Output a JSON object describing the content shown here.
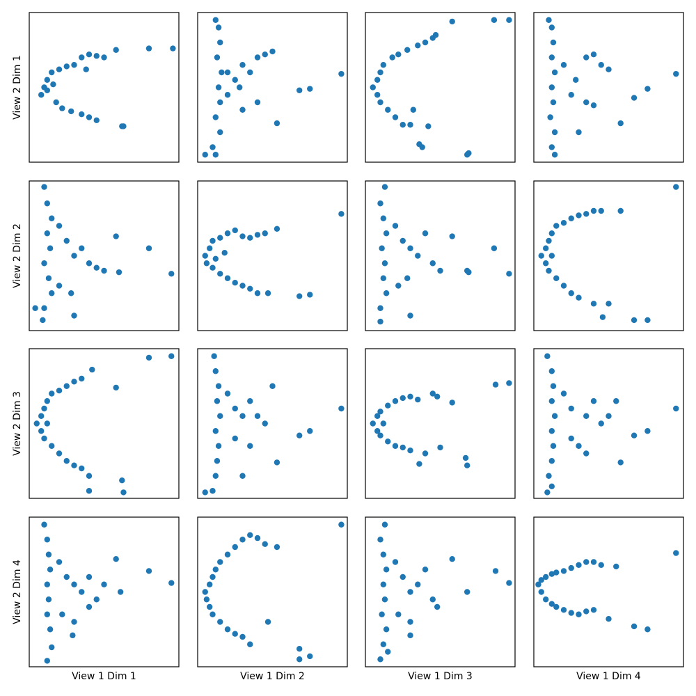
{
  "chart_data": [
    {
      "type": "scatter",
      "ylabel": "View 2 Dim 1",
      "color": "#1f77b4",
      "xlim": [
        0,
        100
      ],
      "ylim": [
        0,
        100
      ],
      "x": [
        10,
        8,
        12,
        15,
        20,
        25,
        30,
        18,
        22,
        28,
        35,
        40,
        45,
        38,
        35,
        40,
        45,
        50,
        58,
        80,
        96,
        62,
        63,
        12,
        16
      ],
      "y": [
        50,
        45,
        55,
        60,
        62,
        64,
        65,
        40,
        36,
        34,
        32,
        30,
        28,
        62,
        70,
        72,
        71,
        70,
        75,
        76,
        76,
        24,
        24,
        48,
        52
      ]
    },
    {
      "type": "scatter",
      "color": "#1f77b4",
      "xlim": [
        0,
        100
      ],
      "ylim": [
        0,
        100
      ],
      "x": [
        12,
        14,
        15,
        13,
        16,
        14,
        15,
        12,
        15,
        10,
        12,
        5,
        20,
        25,
        30,
        35,
        40,
        45,
        50,
        20,
        30,
        40,
        96,
        68,
        75,
        53,
        28
      ],
      "y": [
        95,
        90,
        80,
        70,
        60,
        50,
        40,
        30,
        20,
        10,
        5,
        5,
        60,
        55,
        65,
        60,
        70,
        72,
        74,
        45,
        35,
        40,
        59,
        48,
        49,
        26,
        50
      ]
    },
    {
      "type": "scatter",
      "color": "#1f77b4",
      "xlim": [
        0,
        100
      ],
      "ylim": [
        0,
        100
      ],
      "x": [
        5,
        8,
        10,
        8,
        10,
        15,
        20,
        25,
        30,
        12,
        18,
        22,
        28,
        35,
        40,
        45,
        47,
        58,
        86,
        96,
        68,
        69,
        38,
        36,
        42,
        32
      ],
      "y": [
        50,
        55,
        60,
        45,
        40,
        35,
        30,
        25,
        25,
        65,
        70,
        72,
        75,
        78,
        80,
        83,
        85,
        94,
        95,
        95,
        5,
        6,
        10,
        12,
        24,
        35
      ]
    },
    {
      "type": "scatter",
      "color": "#1f77b4",
      "xlim": [
        0,
        100
      ],
      "ylim": [
        0,
        100
      ],
      "x": [
        10,
        12,
        13,
        12,
        14,
        12,
        13,
        11,
        14,
        12,
        14,
        20,
        28,
        35,
        40,
        45,
        50,
        25,
        35,
        40,
        95,
        67,
        76,
        58,
        30
      ],
      "y": [
        95,
        90,
        80,
        70,
        60,
        50,
        40,
        30,
        20,
        10,
        5,
        65,
        55,
        70,
        72,
        65,
        62,
        45,
        40,
        38,
        59,
        43,
        49,
        26,
        20
      ]
    },
    {
      "type": "scatter",
      "ylabel": "View 2 Dim 2",
      "color": "#1f77b4",
      "xlim": [
        0,
        100
      ],
      "ylim": [
        0,
        100
      ],
      "x": [
        10,
        12,
        15,
        12,
        14,
        10,
        13,
        15,
        10,
        9,
        4,
        20,
        25,
        30,
        35,
        40,
        45,
        50,
        20,
        28,
        95,
        80,
        58,
        60,
        30
      ],
      "y": [
        96,
        85,
        75,
        65,
        55,
        45,
        35,
        25,
        15,
        7,
        15,
        70,
        60,
        50,
        55,
        45,
        42,
        40,
        30,
        25,
        38,
        55,
        63,
        39,
        10
      ]
    },
    {
      "type": "scatter",
      "color": "#1f77b4",
      "xlim": [
        0,
        100
      ],
      "ylim": [
        0,
        100
      ],
      "x": [
        5,
        8,
        10,
        6,
        10,
        15,
        20,
        25,
        30,
        35,
        40,
        47,
        15,
        20,
        25,
        30,
        35,
        40,
        45,
        53,
        96,
        75,
        68,
        12,
        18
      ],
      "y": [
        50,
        55,
        60,
        45,
        42,
        38,
        35,
        32,
        30,
        28,
        25,
        25,
        62,
        65,
        67,
        63,
        62,
        64,
        65,
        68,
        78,
        24,
        23,
        48,
        52
      ]
    },
    {
      "type": "scatter",
      "color": "#1f77b4",
      "xlim": [
        0,
        100
      ],
      "ylim": [
        0,
        100
      ],
      "x": [
        13,
        10,
        12,
        14,
        11,
        13,
        12,
        14,
        10,
        10,
        30,
        20,
        25,
        30,
        35,
        40,
        45,
        50,
        22,
        28,
        96,
        86,
        58,
        68,
        69
      ],
      "y": [
        96,
        85,
        75,
        65,
        55,
        45,
        35,
        25,
        15,
        6,
        10,
        70,
        60,
        55,
        50,
        65,
        45,
        40,
        30,
        35,
        38,
        55,
        63,
        40,
        39
      ]
    },
    {
      "type": "scatter",
      "color": "#1f77b4",
      "xlim": [
        0,
        100
      ],
      "ylim": [
        0,
        100
      ],
      "x": [
        5,
        8,
        10,
        12,
        15,
        20,
        25,
        30,
        35,
        40,
        45,
        8,
        10,
        15,
        20,
        25,
        30,
        40,
        50,
        46,
        58,
        95,
        67,
        76,
        12
      ],
      "y": [
        50,
        55,
        60,
        65,
        70,
        72,
        75,
        77,
        78,
        80,
        80,
        45,
        40,
        35,
        30,
        25,
        22,
        18,
        18,
        9,
        80,
        96,
        7,
        7,
        50
      ]
    },
    {
      "type": "scatter",
      "ylabel": "View 2 Dim 3",
      "color": "#1f77b4",
      "xlim": [
        0,
        100
      ],
      "ylim": [
        0,
        100
      ],
      "x": [
        5,
        8,
        10,
        12,
        15,
        20,
        25,
        30,
        35,
        42,
        58,
        80,
        95,
        8,
        10,
        15,
        20,
        25,
        30,
        35,
        40,
        40,
        62,
        63,
        12
      ],
      "y": [
        50,
        55,
        60,
        65,
        70,
        72,
        75,
        78,
        80,
        86,
        74,
        94,
        95,
        45,
        40,
        35,
        30,
        25,
        22,
        20,
        15,
        5,
        12,
        4,
        50
      ]
    },
    {
      "type": "scatter",
      "color": "#1f77b4",
      "xlim": [
        0,
        100
      ],
      "ylim": [
        0,
        100
      ],
      "x": [
        11,
        12,
        14,
        13,
        15,
        12,
        14,
        13,
        12,
        5,
        10,
        20,
        25,
        30,
        35,
        40,
        45,
        50,
        25,
        35,
        96,
        68,
        75,
        53,
        30
      ],
      "y": [
        95,
        85,
        75,
        65,
        55,
        45,
        35,
        25,
        15,
        4,
        5,
        70,
        60,
        55,
        65,
        55,
        50,
        75,
        40,
        35,
        60,
        42,
        45,
        24,
        15
      ]
    },
    {
      "type": "scatter",
      "color": "#1f77b4",
      "xlim": [
        0,
        100
      ],
      "ylim": [
        0,
        100
      ],
      "x": [
        5,
        8,
        10,
        15,
        20,
        25,
        30,
        35,
        45,
        48,
        8,
        10,
        15,
        20,
        25,
        30,
        40,
        50,
        36,
        58,
        87,
        96,
        68,
        67,
        12
      ],
      "y": [
        50,
        55,
        58,
        62,
        65,
        67,
        68,
        66,
        70,
        68,
        45,
        42,
        38,
        35,
        34,
        32,
        30,
        34,
        23,
        64,
        76,
        77,
        22,
        27,
        50
      ]
    },
    {
      "type": "scatter",
      "color": "#1f77b4",
      "xlim": [
        0,
        100
      ],
      "ylim": [
        0,
        100
      ],
      "x": [
        9,
        12,
        13,
        12,
        14,
        12,
        13,
        12,
        10,
        9,
        12,
        20,
        25,
        35,
        40,
        45,
        50,
        25,
        30,
        35,
        95,
        67,
        76,
        58,
        55
      ],
      "y": [
        95,
        85,
        75,
        65,
        55,
        45,
        35,
        25,
        15,
        4,
        8,
        70,
        60,
        55,
        65,
        50,
        55,
        40,
        35,
        30,
        60,
        42,
        45,
        24,
        65
      ]
    },
    {
      "type": "scatter",
      "xlabel": "View 1 Dim 1",
      "ylabel": "View 2 Dim 4",
      "color": "#1f77b4",
      "xlim": [
        0,
        100
      ],
      "ylim": [
        0,
        100
      ],
      "x": [
        10,
        12,
        13,
        14,
        12,
        13,
        12,
        14,
        15,
        12,
        20,
        25,
        30,
        35,
        40,
        45,
        50,
        22,
        30,
        29,
        95,
        80,
        61,
        58,
        40
      ],
      "y": [
        95,
        85,
        75,
        65,
        55,
        45,
        35,
        25,
        13,
        4,
        70,
        60,
        55,
        50,
        60,
        45,
        55,
        35,
        30,
        21,
        56,
        64,
        50,
        72,
        40
      ]
    },
    {
      "type": "scatter",
      "xlabel": "View 1 Dim 2",
      "color": "#1f77b4",
      "xlim": [
        0,
        100
      ],
      "ylim": [
        0,
        100
      ],
      "x": [
        5,
        6,
        8,
        10,
        12,
        15,
        20,
        25,
        30,
        35,
        40,
        45,
        53,
        96,
        8,
        10,
        15,
        20,
        25,
        30,
        35,
        47,
        68,
        75,
        68
      ],
      "y": [
        50,
        45,
        55,
        60,
        65,
        70,
        75,
        80,
        85,
        88,
        86,
        82,
        80,
        95,
        40,
        35,
        30,
        25,
        22,
        20,
        15,
        30,
        12,
        7,
        5
      ]
    },
    {
      "type": "scatter",
      "xlabel": "View 1 Dim 3",
      "color": "#1f77b4",
      "xlim": [
        0,
        100
      ],
      "ylim": [
        0,
        100
      ],
      "x": [
        13,
        10,
        12,
        14,
        12,
        13,
        11,
        14,
        12,
        10,
        20,
        25,
        30,
        35,
        40,
        45,
        48,
        22,
        30,
        30,
        96,
        87,
        68,
        58,
        15
      ],
      "y": [
        95,
        85,
        75,
        65,
        55,
        45,
        35,
        25,
        15,
        5,
        70,
        60,
        50,
        55,
        65,
        45,
        40,
        35,
        30,
        21,
        56,
        64,
        50,
        72,
        10
      ]
    },
    {
      "type": "scatter",
      "xlabel": "View 1 Dim 4",
      "color": "#1f77b4",
      "xlim": [
        0,
        100
      ],
      "ylim": [
        0,
        100
      ],
      "x": [
        3,
        5,
        8,
        12,
        15,
        20,
        25,
        30,
        35,
        40,
        45,
        55,
        95,
        5,
        8,
        12,
        15,
        20,
        25,
        30,
        35,
        40,
        50,
        67,
        76
      ],
      "y": [
        55,
        58,
        60,
        62,
        63,
        64,
        66,
        68,
        70,
        70,
        68,
        67,
        76,
        50,
        45,
        42,
        40,
        38,
        36,
        35,
        37,
        38,
        32,
        27,
        25
      ]
    }
  ]
}
